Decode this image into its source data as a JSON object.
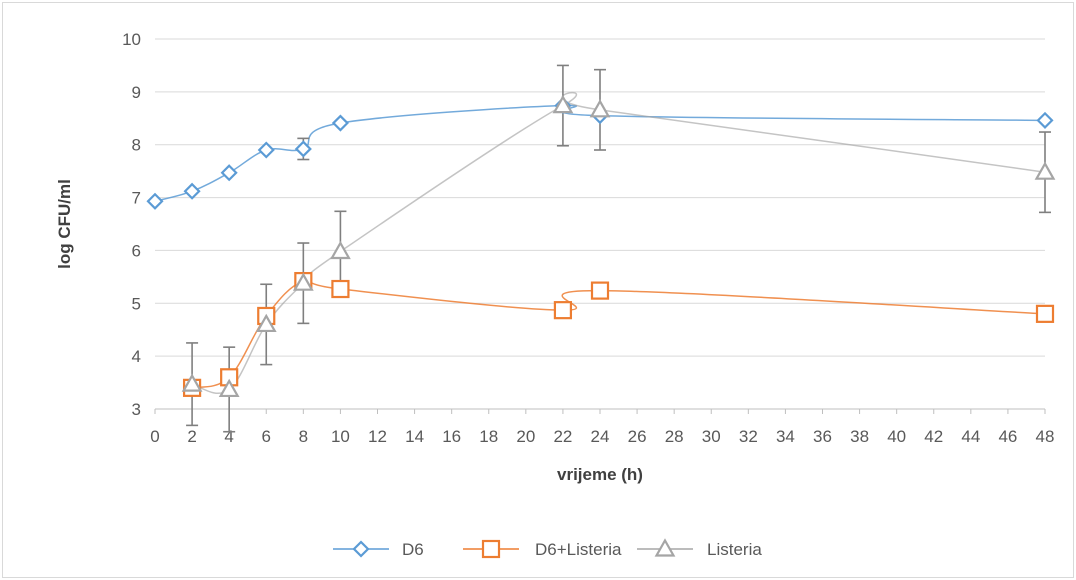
{
  "chart_data": {
    "type": "line",
    "title": "",
    "xlabel": "vrijeme (h)",
    "ylabel": "log CFU/ml",
    "xlim": [
      0,
      48
    ],
    "ylim": [
      3,
      10
    ],
    "x_ticks": [
      0,
      2,
      4,
      6,
      8,
      10,
      12,
      14,
      16,
      18,
      20,
      22,
      24,
      26,
      28,
      30,
      32,
      34,
      36,
      38,
      40,
      42,
      44,
      46,
      48
    ],
    "y_ticks": [
      3,
      4,
      5,
      6,
      7,
      8,
      9,
      10
    ],
    "grid": "horizontal",
    "legend_position": "bottom",
    "series": [
      {
        "name": "D6",
        "color": "#5b9bd5",
        "marker": "diamond",
        "points": [
          {
            "x": 0,
            "y": 6.93
          },
          {
            "x": 2,
            "y": 7.12
          },
          {
            "x": 4,
            "y": 7.47
          },
          {
            "x": 6,
            "y": 7.9
          },
          {
            "x": 8,
            "y": 7.92,
            "err": 0.2
          },
          {
            "x": 10,
            "y": 8.41
          },
          {
            "x": 22,
            "y": 8.74
          },
          {
            "x": 24,
            "y": 8.55
          },
          {
            "x": 48,
            "y": 8.46
          }
        ]
      },
      {
        "name": "D6+Listeria",
        "color": "#ed7d31",
        "marker": "square",
        "points": [
          {
            "x": 2,
            "y": 3.4
          },
          {
            "x": 4,
            "y": 3.6
          },
          {
            "x": 6,
            "y": 4.76
          },
          {
            "x": 8,
            "y": 5.42
          },
          {
            "x": 10,
            "y": 5.27
          },
          {
            "x": 22,
            "y": 4.87
          },
          {
            "x": 24,
            "y": 5.24
          },
          {
            "x": 48,
            "y": 4.8
          }
        ]
      },
      {
        "name": "Listeria",
        "color": "#a5a5a5",
        "marker": "triangle",
        "points": [
          {
            "x": 2,
            "y": 3.47,
            "err": 0.78
          },
          {
            "x": 4,
            "y": 3.37,
            "err": 0.8
          },
          {
            "x": 6,
            "y": 4.6,
            "err": 0.76
          },
          {
            "x": 8,
            "y": 5.38,
            "err": 0.76
          },
          {
            "x": 10,
            "y": 5.98,
            "err": 0.76
          },
          {
            "x": 22,
            "y": 8.74,
            "err": 0.76
          },
          {
            "x": 24,
            "y": 8.66,
            "err": 0.76
          },
          {
            "x": 48,
            "y": 7.48,
            "err": 0.76
          }
        ]
      }
    ]
  }
}
